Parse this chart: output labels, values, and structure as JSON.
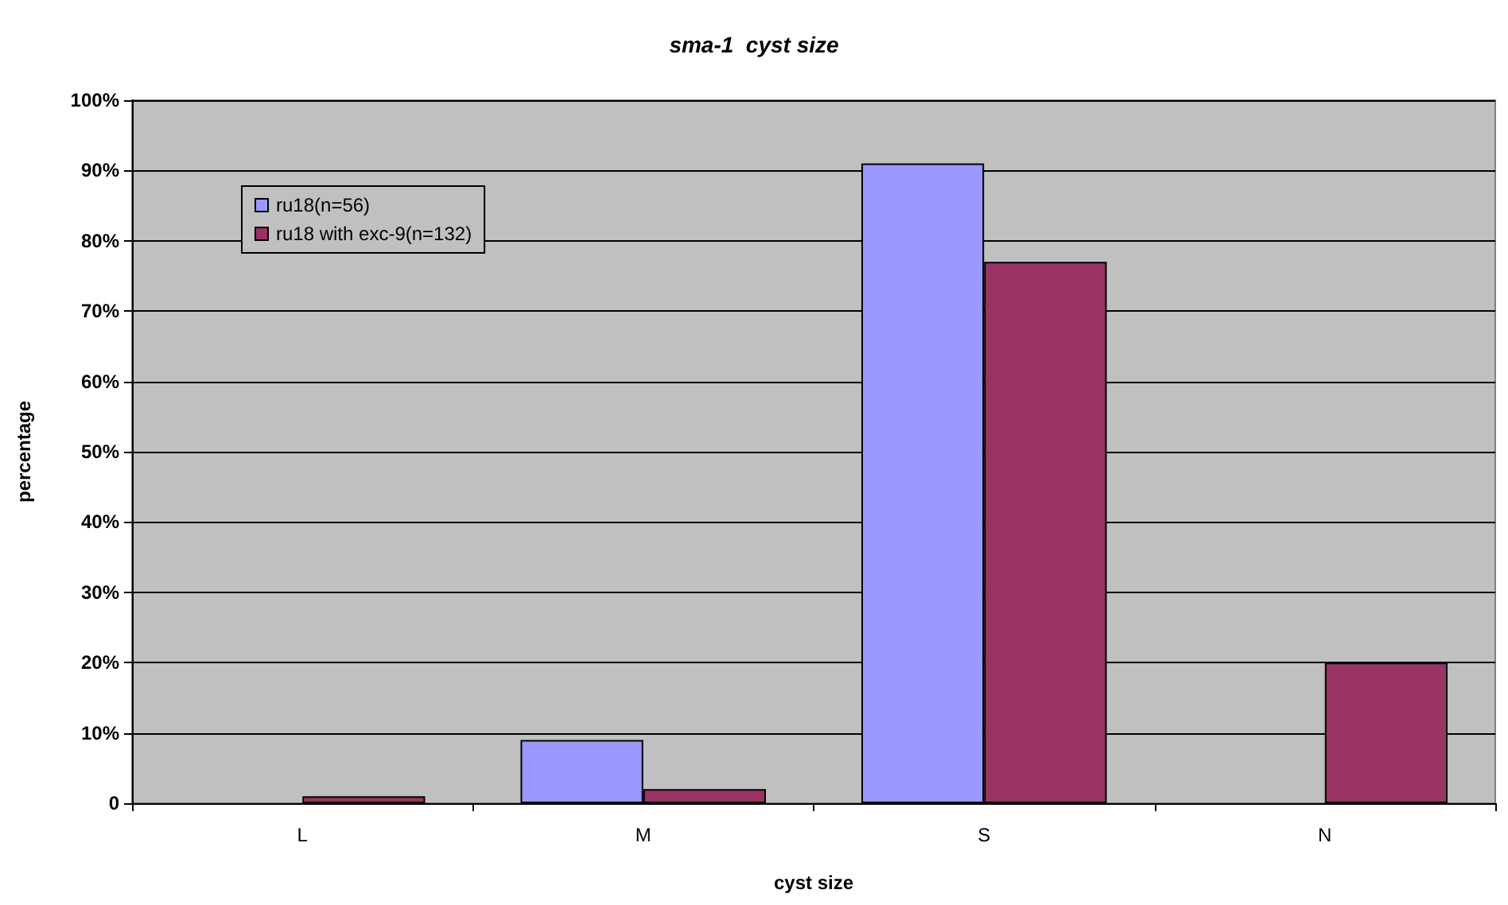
{
  "chart_data": {
    "type": "bar",
    "title": "sma-1  cyst size",
    "xlabel": "cyst size",
    "ylabel": "percentage",
    "categories": [
      "L",
      "M",
      "S",
      "N"
    ],
    "series": [
      {
        "name": "ru18(n=56)",
        "color": "#9999ff",
        "values": [
          0,
          9,
          91,
          0
        ]
      },
      {
        "name": "ru18 with exc-9(n=132)",
        "color": "#993366",
        "values": [
          1,
          2,
          77,
          20
        ]
      }
    ],
    "ylim": [
      0,
      100
    ],
    "yticks": [
      0,
      {
        "value": 10,
        "label": "10%"
      },
      {
        "value": 20,
        "label": "20%"
      },
      {
        "value": 30,
        "label": "30%"
      },
      {
        "value": 40,
        "label": "40%"
      },
      {
        "value": 50,
        "label": "50%"
      },
      {
        "value": 60,
        "label": "60%"
      },
      {
        "value": 70,
        "label": "70%"
      },
      {
        "value": 80,
        "label": "80%"
      },
      {
        "value": 90,
        "label": "90%"
      },
      {
        "value": 100,
        "label": "100%"
      }
    ],
    "grid": "y",
    "legend": "top left"
  }
}
